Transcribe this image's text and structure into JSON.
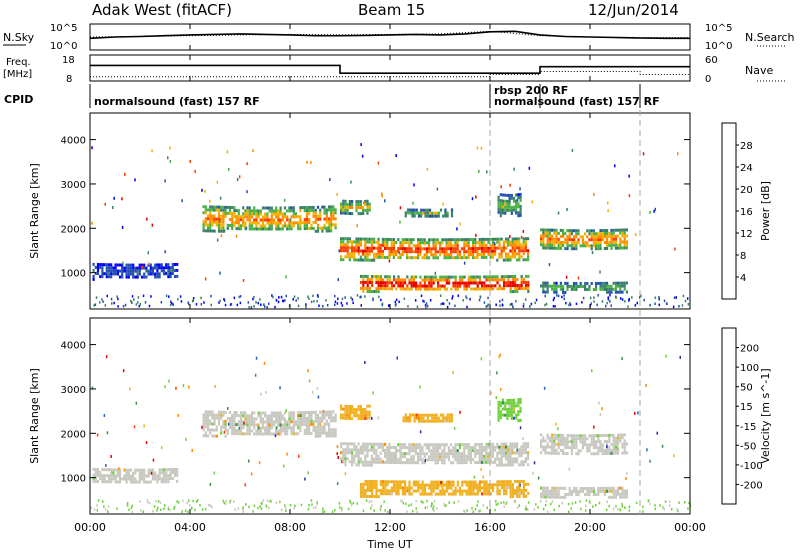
{
  "header": {
    "station": "Adak West (fitACF)",
    "beam": "Beam 15",
    "date": "12/Jun/2014"
  },
  "chart_data": [
    {
      "type": "line",
      "panel": "noise",
      "ylabel_left": "N.Sky",
      "ylabel_right": "N.Search",
      "y_ticks_left": [
        "10^5",
        "10^0"
      ],
      "y_ticks_right": [
        "10^5",
        "10^0"
      ],
      "series": [
        {
          "name": "N.Sky",
          "style": "solid",
          "x": [
            0,
            1,
            2,
            3,
            4,
            5,
            6,
            7,
            8,
            9,
            10,
            11,
            12,
            13,
            14,
            15,
            16,
            17,
            18,
            19,
            20,
            21,
            22,
            23,
            24
          ],
          "values": [
            0.45,
            0.5,
            0.52,
            0.55,
            0.58,
            0.6,
            0.62,
            0.6,
            0.58,
            0.55,
            0.55,
            0.56,
            0.58,
            0.6,
            0.58,
            0.62,
            0.7,
            0.72,
            0.58,
            0.52,
            0.5,
            0.48,
            0.46,
            0.45,
            0.45
          ]
        },
        {
          "name": "N.Search",
          "style": "dotted",
          "x": [
            0,
            2,
            4,
            6,
            8,
            10,
            12,
            14,
            16,
            18,
            20,
            22,
            24
          ],
          "values": [
            0.5,
            0.52,
            0.55,
            0.58,
            0.6,
            0.58,
            0.6,
            0.62,
            0.72,
            0.55,
            0.5,
            0.48,
            0.48
          ]
        }
      ]
    },
    {
      "type": "line",
      "panel": "frequency",
      "ylabel_left": "Freq.",
      "ylabel_left_unit": "[MHz]",
      "ylabel_right": "Nave",
      "y_ticks_left": [
        "18",
        "8"
      ],
      "y_ticks_right": [
        "60",
        "0"
      ],
      "series": [
        {
          "name": "Freq.",
          "style": "solid",
          "x": [
            0,
            10,
            10,
            18,
            18,
            24
          ],
          "values": [
            14,
            14,
            11,
            11,
            13.5,
            13.5
          ]
        },
        {
          "name": "Nave",
          "style": "dotted",
          "x": [
            0,
            16,
            16,
            18,
            18,
            22,
            22,
            24
          ],
          "values": [
            10,
            10,
            15,
            15,
            22,
            22,
            15,
            15
          ]
        }
      ]
    },
    {
      "type": "table",
      "panel": "cpid",
      "label": "CPID",
      "segments": [
        {
          "start": 0,
          "end": 16,
          "text": "normalsound (fast) 157 RF"
        },
        {
          "start": 16,
          "end": 18,
          "text": "rbsp 200 RF"
        },
        {
          "start": 16,
          "end": 22,
          "text": "normalsound (fast) 157 RF"
        }
      ]
    },
    {
      "type": "heatmap",
      "panel": "power",
      "ylabel": "Slant Range [km]",
      "ylim": [
        180,
        4600
      ],
      "yticks": [
        "1000",
        "2000",
        "3000",
        "4000"
      ],
      "colorbar_label": "Power [dB]",
      "colorbar_ticks": [
        "4",
        "8",
        "12",
        "16",
        "20",
        "24",
        "28"
      ],
      "colors": [
        "#0000ff",
        "#224fb0",
        "#3a7f6a",
        "#48b045",
        "#f2b000",
        "#ff8a00",
        "#ff3a00",
        "#e60000"
      ],
      "echo_bands": [
        {
          "x": [
            0.1,
            3.5
          ],
          "y": [
            880,
            1220
          ],
          "level": 1
        },
        {
          "x": [
            4.5,
            9.8
          ],
          "y": [
            1950,
            2520
          ],
          "level": 5
        },
        {
          "x": [
            10,
            17.5
          ],
          "y": [
            1300,
            1800
          ],
          "level": 6
        },
        {
          "x": [
            10.8,
            17.5
          ],
          "y": [
            600,
            950
          ],
          "level": 7
        },
        {
          "x": [
            18,
            21.5
          ],
          "y": [
            1550,
            2000
          ],
          "level": 5
        },
        {
          "x": [
            18,
            21.5
          ],
          "y": [
            580,
            800
          ],
          "level": 3
        },
        {
          "x": [
            10,
            11.2
          ],
          "y": [
            2350,
            2650
          ],
          "level": 4
        },
        {
          "x": [
            12.5,
            14.5
          ],
          "y": [
            2280,
            2450
          ],
          "level": 3
        },
        {
          "x": [
            16.3,
            17.2
          ],
          "y": [
            2300,
            2800
          ],
          "level": 3
        }
      ]
    },
    {
      "type": "heatmap",
      "panel": "velocity",
      "ylabel": "Slant Range [km]",
      "ylim": [
        180,
        4600
      ],
      "yticks": [
        "1000",
        "2000",
        "3000",
        "4000"
      ],
      "colorbar_label": "Velocity [m s^-1]",
      "colorbar_ticks": [
        "200",
        "100",
        "50",
        "15",
        "-15",
        "-50",
        "-100",
        "-200"
      ],
      "colors": [
        "#2233aa",
        "#2f5fbf",
        "#3a8f4a",
        "#6fd13a",
        "#c8c8c0",
        "#f0b020",
        "#ff8a00",
        "#ff3a00",
        "#e60000"
      ],
      "x_ticks": [
        "00:00",
        "04:00",
        "08:00",
        "12:00",
        "16:00",
        "20:00",
        "00:00"
      ],
      "xlabel": "Time UT",
      "echo_bands": [
        {
          "x": [
            0.1,
            3.5
          ],
          "y": [
            880,
            1220
          ],
          "level": 4
        },
        {
          "x": [
            4.5,
            9.8
          ],
          "y": [
            1950,
            2520
          ],
          "level": 4
        },
        {
          "x": [
            10,
            17.5
          ],
          "y": [
            1300,
            1800
          ],
          "level": 4
        },
        {
          "x": [
            10.8,
            17.5
          ],
          "y": [
            600,
            950
          ],
          "level": 5
        },
        {
          "x": [
            18,
            21.5
          ],
          "y": [
            1550,
            2000
          ],
          "level": 4
        },
        {
          "x": [
            18,
            21.5
          ],
          "y": [
            580,
            800
          ],
          "level": 4
        },
        {
          "x": [
            10,
            11.2
          ],
          "y": [
            2350,
            2650
          ],
          "level": 5
        },
        {
          "x": [
            12.5,
            14.5
          ],
          "y": [
            2280,
            2450
          ],
          "level": 5
        },
        {
          "x": [
            16.3,
            17.2
          ],
          "y": [
            2300,
            2800
          ],
          "level": 3
        }
      ]
    }
  ]
}
